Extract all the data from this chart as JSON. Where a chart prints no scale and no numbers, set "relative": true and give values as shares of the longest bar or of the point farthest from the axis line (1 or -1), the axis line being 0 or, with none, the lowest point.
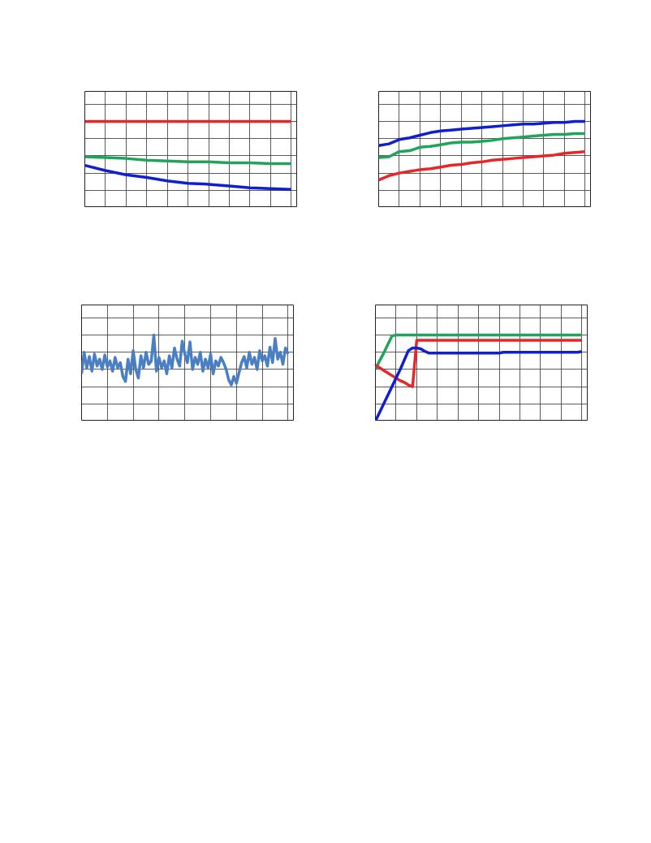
{
  "chart_data": [
    {
      "type": "line",
      "relative": true,
      "grid": true,
      "tick_labels": false,
      "categories": [
        null,
        null,
        null,
        null,
        null,
        null,
        null,
        null,
        null,
        null,
        null
      ],
      "series": [
        {
          "color": "#e8262a",
          "values": [
            1.0,
            1.0,
            1.0,
            1.0,
            1.0,
            1.0,
            1.0,
            1.0,
            1.0,
            1.0,
            1.0
          ]
        },
        {
          "color": "#1fa55a",
          "values": [
            0.59,
            0.58,
            0.57,
            0.55,
            0.54,
            0.53,
            0.53,
            0.52,
            0.52,
            0.51,
            0.51
          ]
        },
        {
          "color": "#1020d0",
          "values": [
            0.49,
            0.43,
            0.38,
            0.35,
            0.31,
            0.28,
            0.27,
            0.25,
            0.23,
            0.22,
            0.21
          ]
        }
      ]
    },
    {
      "type": "line",
      "relative": true,
      "grid": true,
      "tick_labels": false,
      "categories": [
        null,
        null,
        null,
        null,
        null,
        null,
        null,
        null,
        null,
        null,
        null,
        null,
        null,
        null,
        null,
        null,
        null,
        null,
        null,
        null,
        null
      ],
      "series": [
        {
          "color": "#1020d0",
          "values": [
            0.72,
            0.74,
            0.79,
            0.81,
            0.84,
            0.87,
            0.89,
            0.9,
            0.91,
            0.92,
            0.93,
            0.94,
            0.95,
            0.96,
            0.97,
            0.97,
            0.98,
            0.99,
            0.99,
            1.0,
            1.0
          ]
        },
        {
          "color": "#1fa55a",
          "values": [
            0.58,
            0.59,
            0.65,
            0.66,
            0.7,
            0.71,
            0.73,
            0.75,
            0.76,
            0.76,
            0.77,
            0.78,
            0.8,
            0.81,
            0.82,
            0.83,
            0.84,
            0.85,
            0.85,
            0.86,
            0.86
          ]
        },
        {
          "color": "#e8262a",
          "values": [
            0.32,
            0.37,
            0.4,
            0.42,
            0.44,
            0.45,
            0.47,
            0.49,
            0.5,
            0.52,
            0.53,
            0.55,
            0.56,
            0.57,
            0.58,
            0.59,
            0.6,
            0.61,
            0.63,
            0.64,
            0.65
          ]
        }
      ]
    },
    {
      "type": "line",
      "relative": true,
      "grid": true,
      "tick_labels": false,
      "categories": [
        null,
        null,
        null,
        null,
        null,
        null,
        null,
        null,
        null,
        null,
        null,
        null,
        null,
        null,
        null,
        null,
        null,
        null,
        null,
        null,
        null,
        null,
        null,
        null,
        null,
        null,
        null,
        null,
        null,
        null,
        null,
        null,
        null,
        null,
        null,
        null,
        null,
        null,
        null,
        null,
        null,
        null,
        null,
        null,
        null,
        null,
        null,
        null,
        null,
        null,
        null,
        null,
        null,
        null,
        null,
        null,
        null,
        null,
        null,
        null,
        null,
        null,
        null,
        null,
        null,
        null,
        null,
        null,
        null,
        null,
        null,
        null,
        null,
        null,
        null,
        null,
        null,
        null,
        null,
        null,
        null
      ],
      "series": [
        {
          "color": "#4a7fc4",
          "values": [
            0.55,
            0.8,
            0.62,
            0.75,
            0.58,
            0.78,
            0.64,
            0.72,
            0.6,
            0.77,
            0.63,
            0.7,
            0.58,
            0.74,
            0.62,
            0.68,
            0.52,
            0.46,
            0.72,
            0.55,
            0.82,
            0.6,
            0.5,
            0.76,
            0.62,
            0.8,
            0.66,
            0.7,
            1.0,
            0.58,
            0.74,
            0.62,
            0.7,
            0.55,
            0.76,
            0.62,
            0.85,
            0.72,
            0.64,
            0.93,
            0.78,
            0.68,
            0.92,
            0.6,
            0.74,
            0.66,
            0.8,
            0.58,
            0.72,
            0.62,
            0.78,
            0.55,
            0.7,
            0.64,
            0.74,
            0.68,
            0.6,
            0.48,
            0.42,
            0.52,
            0.44,
            0.56,
            0.68,
            0.75,
            0.62,
            0.8,
            0.66,
            0.74,
            0.6,
            0.82,
            0.7,
            0.76,
            0.64,
            0.86,
            0.68,
            0.96,
            0.72,
            0.8,
            0.66,
            0.85,
            0.78
          ]
        }
      ]
    },
    {
      "type": "line",
      "relative": true,
      "grid": true,
      "tick_labels": false,
      "categories": [
        null,
        null,
        null,
        null,
        null,
        null,
        null,
        null,
        null,
        null,
        null,
        null,
        null,
        null,
        null,
        null,
        null,
        null,
        null,
        null,
        null,
        null,
        null,
        null,
        null,
        null,
        null,
        null,
        null,
        null,
        null,
        null,
        null,
        null,
        null,
        null,
        null,
        null,
        null,
        null,
        null,
        null,
        null,
        null,
        null,
        null,
        null,
        null,
        null,
        null,
        null
      ],
      "series": [
        {
          "color": "#1fa55a",
          "values": [
            0.6,
            0.7,
            0.79,
            0.89,
            0.99,
            1.0,
            1.0,
            1.0,
            1.0,
            1.0,
            1.0,
            1.0,
            1.0,
            1.0,
            1.0,
            1.0,
            1.0,
            1.0,
            1.0,
            1.0,
            1.0,
            1.0,
            1.0,
            1.0,
            1.0,
            1.0,
            1.0,
            1.0,
            1.0,
            1.0,
            1.0,
            1.0,
            1.0,
            1.0,
            1.0,
            1.0,
            1.0,
            1.0,
            1.0,
            1.0,
            1.0,
            1.0,
            1.0,
            1.0,
            1.0,
            1.0,
            1.0,
            1.0,
            1.0,
            1.0,
            1.0
          ]
        },
        {
          "color": "#e8262a",
          "values": [
            0.65,
            0.62,
            0.59,
            0.56,
            0.53,
            0.5,
            0.47,
            0.45,
            0.42,
            0.4,
            0.94,
            0.94,
            0.94,
            0.94,
            0.94,
            0.94,
            0.94,
            0.94,
            0.94,
            0.94,
            0.94,
            0.94,
            0.94,
            0.94,
            0.94,
            0.94,
            0.94,
            0.94,
            0.94,
            0.94,
            0.94,
            0.94,
            0.94,
            0.94,
            0.94,
            0.94,
            0.94,
            0.94,
            0.94,
            0.94,
            0.94,
            0.94,
            0.94,
            0.94,
            0.94,
            0.94,
            0.94,
            0.94,
            0.94,
            0.94,
            0.94
          ]
        },
        {
          "color": "#1020d0",
          "values": [
            0,
            0.1,
            0.2,
            0.3,
            0.4,
            0.5,
            0.6,
            0.71,
            0.82,
            0.85,
            0.85,
            0.84,
            0.81,
            0.79,
            0.79,
            0.79,
            0.79,
            0.79,
            0.79,
            0.79,
            0.79,
            0.79,
            0.79,
            0.79,
            0.79,
            0.79,
            0.79,
            0.79,
            0.79,
            0.79,
            0.79,
            0.8,
            0.8,
            0.8,
            0.8,
            0.8,
            0.8,
            0.8,
            0.8,
            0.8,
            0.8,
            0.8,
            0.8,
            0.8,
            0.8,
            0.8,
            0.8,
            0.8,
            0.8,
            0.8,
            0.81
          ]
        }
      ]
    }
  ]
}
